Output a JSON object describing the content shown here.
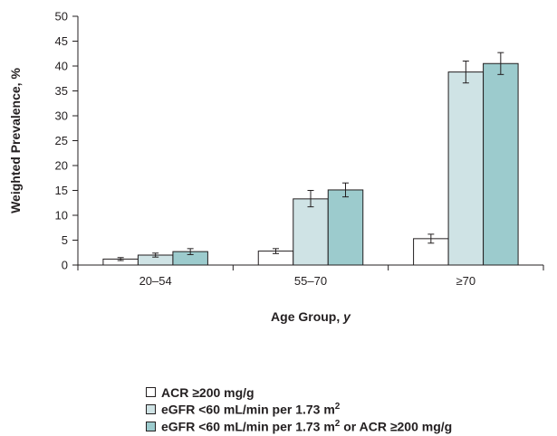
{
  "chart_data": {
    "type": "bar",
    "categories": [
      "20–54",
      "55–70",
      "≥70"
    ],
    "series": [
      {
        "name": "ACR ≥200 mg/g",
        "color": "#ffffff",
        "values": [
          1.2,
          2.8,
          5.3
        ],
        "err_low": [
          0.9,
          2.3,
          4.4
        ],
        "err_high": [
          1.5,
          3.3,
          6.2
        ]
      },
      {
        "name": "eGFR <60 mL/min per 1.73 m²",
        "color": "#cfe3e5",
        "values": [
          2.0,
          13.3,
          38.8
        ],
        "err_low": [
          1.6,
          11.7,
          36.6
        ],
        "err_high": [
          2.4,
          15.0,
          41.0
        ]
      },
      {
        "name": "eGFR <60 mL/min per 1.73 m² or ACR ≥200 mg/g",
        "color": "#9ccbcd",
        "values": [
          2.7,
          15.1,
          40.5
        ],
        "err_low": [
          2.1,
          13.7,
          38.3
        ],
        "err_high": [
          3.3,
          16.5,
          42.7
        ]
      }
    ],
    "xlabel": "Age Group, y",
    "ylabel": "Weighted Prevalence, %",
    "ylim": [
      0,
      50
    ],
    "yticks": [
      0,
      5,
      10,
      15,
      20,
      25,
      30,
      35,
      40,
      45,
      50
    ],
    "grid": false,
    "legend_position": "bottom"
  }
}
